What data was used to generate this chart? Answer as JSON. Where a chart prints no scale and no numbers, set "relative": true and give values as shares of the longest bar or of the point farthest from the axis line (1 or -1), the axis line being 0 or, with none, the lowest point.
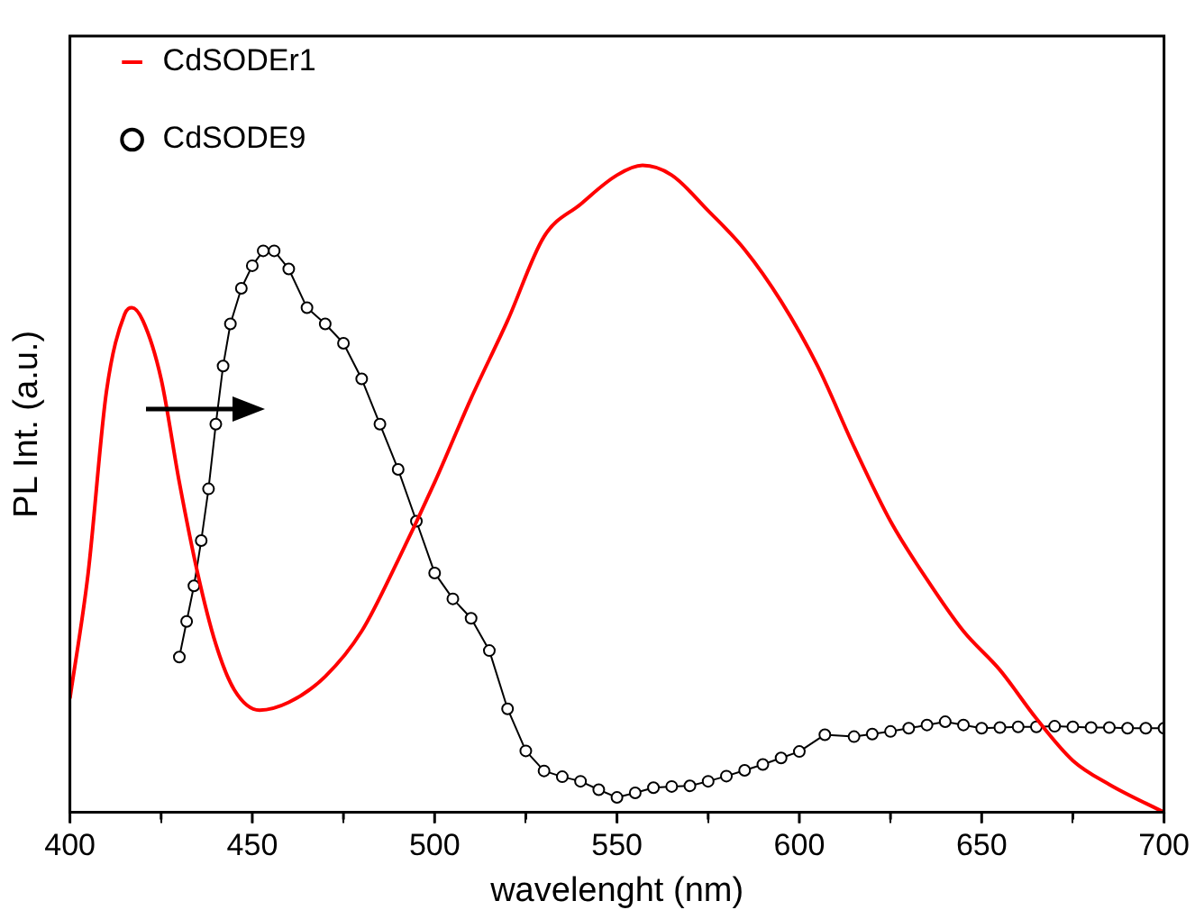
{
  "chart_data": {
    "type": "line",
    "relative": true,
    "xlabel": "wavelenght (nm)",
    "ylabel": "PL Int. (a.u.)",
    "xlim": [
      400,
      700
    ],
    "xticks": [
      400,
      {
        "value": 425,
        "label": null
      },
      450,
      {
        "value": 475,
        "label": null
      },
      500,
      {
        "value": 525,
        "label": null
      },
      550,
      {
        "value": 575,
        "label": null
      },
      600,
      {
        "value": 625,
        "label": null
      },
      650,
      {
        "value": 675,
        "label": null
      },
      700
    ],
    "tick_labels": "x",
    "grid": false,
    "legend": "top left",
    "series": [
      {
        "name": "CdSODEr1",
        "color": "#ff0000",
        "marker": "none",
        "x": [
          400,
          405,
          410,
          415,
          417,
          420,
          425,
          430,
          435,
          440,
          445,
          452,
          460,
          470,
          480,
          490,
          500,
          510,
          520,
          530,
          540,
          550,
          557,
          565,
          575,
          585,
          595,
          605,
          615,
          625,
          635,
          645,
          655,
          665,
          675,
          685,
          700
        ],
        "values": [
          0.176,
          0.37,
          0.65,
          0.77,
          0.78,
          0.76,
          0.67,
          0.51,
          0.37,
          0.26,
          0.19,
          0.158,
          0.17,
          0.21,
          0.28,
          0.39,
          0.51,
          0.64,
          0.76,
          0.89,
          0.94,
          0.985,
          1,
          0.985,
          0.93,
          0.87,
          0.79,
          0.69,
          0.565,
          0.45,
          0.36,
          0.28,
          0.22,
          0.145,
          0.08,
          0.043,
          0
        ]
      },
      {
        "name": "CdSODE9",
        "color": "#000000",
        "marker": "circle",
        "x": [
          430,
          432,
          434,
          436,
          438,
          440,
          442,
          444,
          447,
          450,
          453,
          456,
          460,
          465,
          470,
          475,
          480,
          485,
          490,
          495,
          500,
          505,
          510,
          515,
          520,
          525,
          530,
          535,
          540,
          545,
          550,
          555,
          560,
          565,
          570,
          575,
          580,
          585,
          590,
          595,
          600,
          607,
          615,
          620,
          625,
          630,
          635,
          640,
          645,
          650,
          655,
          660,
          665,
          670,
          675,
          680,
          685,
          690,
          695,
          700
        ],
        "values": [
          0.24,
          0.295,
          0.35,
          0.42,
          0.5,
          0.6,
          0.69,
          0.755,
          0.81,
          0.845,
          0.868,
          0.868,
          0.84,
          0.78,
          0.755,
          0.725,
          0.67,
          0.6,
          0.53,
          0.45,
          0.37,
          0.33,
          0.3,
          0.25,
          0.16,
          0.095,
          0.064,
          0.055,
          0.048,
          0.035,
          0.023,
          0.03,
          0.038,
          0.04,
          0.041,
          0.048,
          0.056,
          0.065,
          0.074,
          0.084,
          0.094,
          0.12,
          0.117,
          0.121,
          0.125,
          0.13,
          0.135,
          0.14,
          0.135,
          0.13,
          0.131,
          0.132,
          0.132,
          0.133,
          0.132,
          0.131,
          0.131,
          0.13,
          0.13,
          0.13
        ]
      }
    ]
  }
}
